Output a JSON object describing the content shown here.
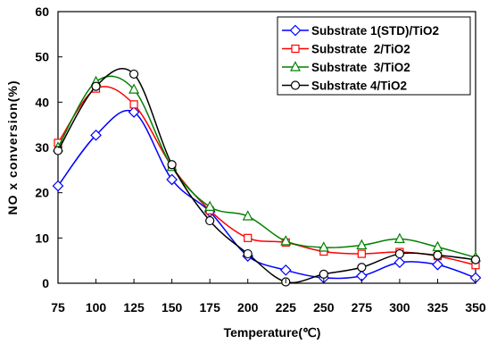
{
  "chart_data": {
    "type": "line",
    "smooth": true,
    "title": "",
    "xlabel": "Temperature(℃)",
    "ylabel": "NO x conversion(%)",
    "xlim": [
      75,
      350
    ],
    "ylim": [
      0,
      60
    ],
    "xticks": [
      75,
      100,
      125,
      150,
      175,
      200,
      225,
      250,
      275,
      300,
      325,
      350
    ],
    "yticks": [
      0,
      10,
      20,
      30,
      40,
      50,
      60
    ],
    "grid": false,
    "legend_position": "top-right",
    "x": [
      75,
      100,
      125,
      150,
      175,
      200,
      225,
      250,
      275,
      300,
      325,
      350
    ],
    "series": [
      {
        "name": "Substrate 1(STD)/TiO2",
        "color": "#0000ff",
        "marker": "diamond",
        "values": [
          21.5,
          32.7,
          37.8,
          22.9,
          15.8,
          6.0,
          2.9,
          1.2,
          1.6,
          4.6,
          4.1,
          1.2
        ]
      },
      {
        "name": "Substrate  2/TiO2",
        "color": "#ff0000",
        "marker": "square",
        "values": [
          31.0,
          43.0,
          39.5,
          25.8,
          16.1,
          10.0,
          9.0,
          7.0,
          6.5,
          6.9,
          6.0,
          4.0
        ]
      },
      {
        "name": "Substrate  3/TiO2",
        "color": "#008000",
        "marker": "triangle",
        "values": [
          30.0,
          44.5,
          42.8,
          25.7,
          16.9,
          14.8,
          9.3,
          7.9,
          8.4,
          9.8,
          8.0,
          5.7
        ]
      },
      {
        "name": "Substrate 4/TiO2",
        "color": "#000000",
        "marker": "circle",
        "values": [
          29.3,
          43.5,
          46.2,
          26.2,
          13.8,
          6.5,
          0.3,
          2.0,
          3.5,
          6.5,
          6.2,
          5.2
        ]
      }
    ]
  }
}
